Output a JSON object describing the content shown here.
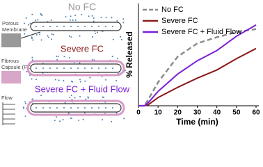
{
  "diagram": {
    "labels": {
      "no_fc": "No FC",
      "porous_membrane": [
        "Porous",
        "Membrane"
      ],
      "severe_fc": "Severe FC",
      "fibrous_capsule": [
        "Fibrous",
        "Capsule (FC)"
      ],
      "severe_fc_flow": "Severe FC + Fluid Flow",
      "flow": "Flow"
    }
  },
  "chart_data": {
    "type": "line",
    "ylabel": "% Released",
    "xlabel": "Time (min)",
    "x": [
      0,
      3,
      5,
      10,
      20,
      30,
      40,
      50,
      60
    ],
    "xlim": [
      0,
      60
    ],
    "xticks": [
      0,
      10,
      20,
      30,
      40,
      50,
      60
    ],
    "ylim": [
      0,
      100
    ],
    "legend": "upper left",
    "series": [
      {
        "name": "No FC",
        "color": "#8c8c8c",
        "dashed": true,
        "values": [
          0,
          0,
          6,
          23,
          48,
          61,
          67,
          72,
          75
        ]
      },
      {
        "name": "Severe FC",
        "color": "#8b1a1a",
        "values": [
          0,
          0,
          1,
          8,
          18,
          27,
          35,
          46,
          56
        ]
      },
      {
        "name": "Severe FC + Fluid Flow",
        "color": "#7a1fd6",
        "values": [
          0,
          0,
          3,
          14,
          31,
          44,
          54,
          68,
          79
        ]
      }
    ]
  }
}
